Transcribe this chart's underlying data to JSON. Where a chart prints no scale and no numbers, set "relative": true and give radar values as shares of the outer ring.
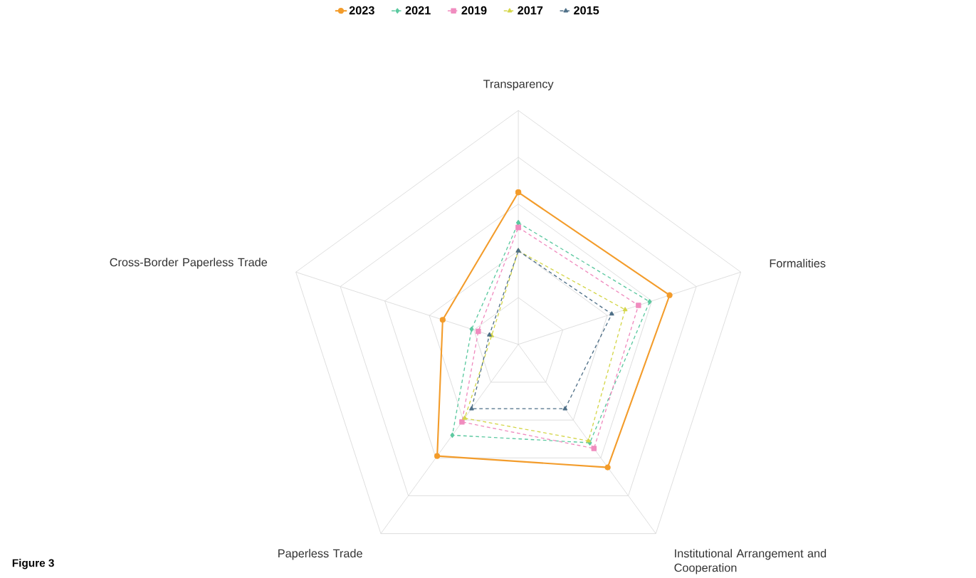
{
  "chart_data": {
    "type": "radar",
    "relative": true,
    "legend": "top",
    "categories": [
      "Transparency",
      "Formalities",
      "Institutional Arrangement and Cooperation",
      "Paperless Trade",
      "Cross-Border Paperless Trade"
    ],
    "series": [
      {
        "name": "2023",
        "color": "#f39c2b",
        "marker": "circle",
        "line_style": "solid",
        "values": [
          0.65,
          0.68,
          0.65,
          0.59,
          0.34
        ]
      },
      {
        "name": "2021",
        "color": "#5cc9a0",
        "marker": "diamond",
        "line_style": "dashed",
        "values": [
          0.52,
          0.59,
          0.52,
          0.48,
          0.21
        ]
      },
      {
        "name": "2019",
        "color": "#f08cbf",
        "marker": "square",
        "line_style": "dashed",
        "values": [
          0.5,
          0.54,
          0.55,
          0.41,
          0.18
        ]
      },
      {
        "name": "2017",
        "color": "#d4d64a",
        "marker": "triangle",
        "line_style": "dashed",
        "values": [
          0.4,
          0.48,
          0.51,
          0.39,
          0.12
        ]
      },
      {
        "name": "2015",
        "color": "#4f7088",
        "marker": "triangle",
        "line_style": "dashed",
        "values": [
          0.4,
          0.42,
          0.34,
          0.34,
          0.13
        ]
      }
    ],
    "annotations": [
      "Figure 3"
    ]
  }
}
